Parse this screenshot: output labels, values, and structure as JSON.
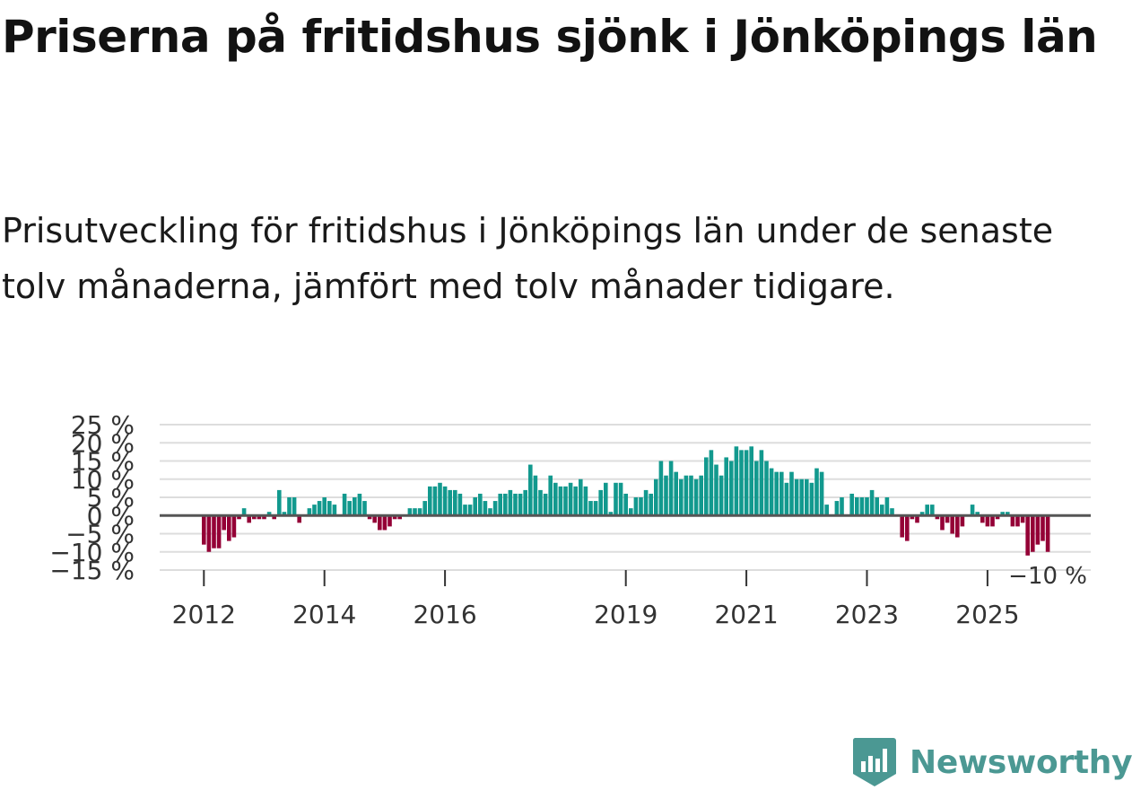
{
  "title": "Priserna på fritidshus sjönk i Jönköpings län",
  "subtitle": "Prisutveckling för fritidshus i Jönköpings län under de senaste tolv månaderna, jämfört med tolv månader tidigare.",
  "brand": "Newsworthy",
  "colors": {
    "positive": "#12998e",
    "negative": "#940036",
    "grid": "#dddddd",
    "zero": "#555555",
    "brand": "#4b9893"
  },
  "chart_data": {
    "type": "bar",
    "unit": "%",
    "x_start": "2012-01",
    "frequency": "monthly",
    "ylim": [
      -15,
      25
    ],
    "y_ticks": [
      25,
      20,
      15,
      10,
      5,
      0,
      -5,
      -10,
      -15
    ],
    "y_tick_labels": [
      "25 %",
      "20 %",
      "15 %",
      "10 %",
      "5 %",
      "0 %",
      "−5 %",
      "−10 %",
      "−15 %"
    ],
    "x_ticks": [
      "2012",
      "2014",
      "2016",
      "2019",
      "2021",
      "2023",
      "2025"
    ],
    "last_label": "−10 %",
    "grid": true,
    "values": [
      -8,
      -10,
      -9,
      -9,
      -4,
      -7,
      -6,
      -1,
      2,
      -2,
      -1,
      -1,
      -1,
      1,
      -1,
      7,
      1,
      5,
      5,
      -2,
      0,
      2,
      3,
      4,
      5,
      4,
      3,
      0,
      6,
      4,
      5,
      6,
      4,
      -1,
      -2,
      -4,
      -4,
      -3,
      -1,
      -1,
      0,
      2,
      2,
      2,
      4,
      8,
      8,
      9,
      8,
      7,
      7,
      6,
      3,
      3,
      5,
      6,
      4,
      2,
      4,
      6,
      6,
      7,
      6,
      6,
      7,
      14,
      11,
      7,
      6,
      11,
      9,
      8,
      8,
      9,
      8,
      10,
      8,
      4,
      4,
      7,
      9,
      1,
      9,
      9,
      6,
      2,
      5,
      5,
      7,
      6,
      10,
      15,
      11,
      15,
      12,
      10,
      11,
      11,
      10,
      11,
      16,
      18,
      14,
      11,
      16,
      15,
      19,
      18,
      18,
      19,
      15,
      18,
      15,
      13,
      12,
      12,
      9,
      12,
      10,
      10,
      10,
      9,
      13,
      12,
      3,
      0,
      4,
      5,
      0,
      6,
      5,
      5,
      5,
      7,
      5,
      3,
      5,
      2,
      0,
      -6,
      -7,
      -1,
      -2,
      1,
      3,
      3,
      -1,
      -4,
      -2,
      -5,
      -6,
      -3,
      0,
      3,
      1,
      -2,
      -3,
      -3,
      -1,
      1,
      1,
      -3,
      -3,
      -2,
      -11,
      -10,
      -8,
      -7,
      -10
    ]
  }
}
